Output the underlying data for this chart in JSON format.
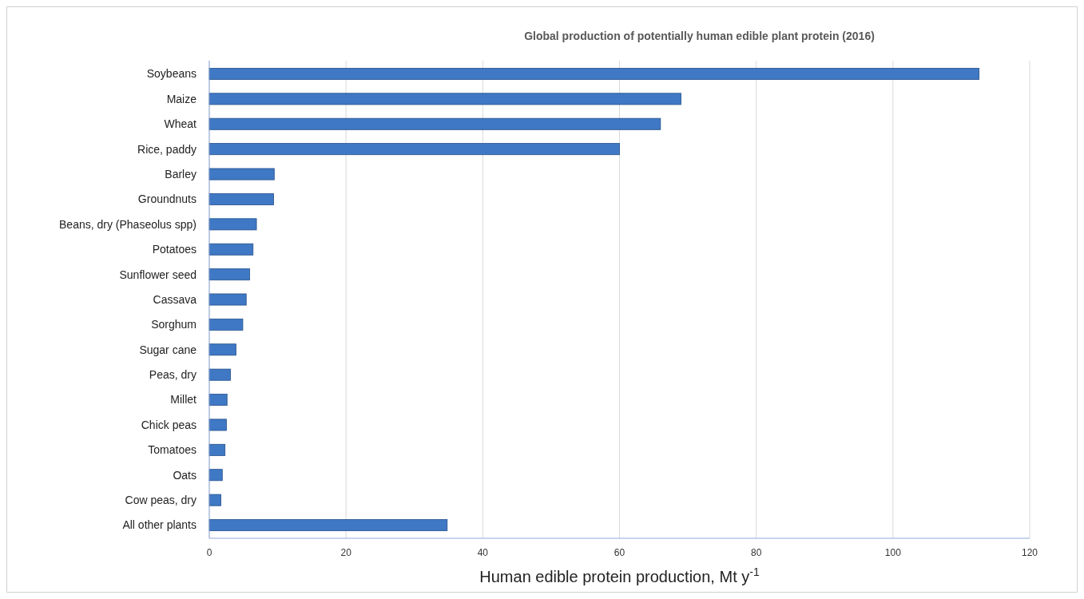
{
  "chart_data": {
    "type": "bar",
    "orientation": "horizontal",
    "title": "Global production  of potentially human edible plant protein (2016)",
    "xlabel": "Human edible protein production, Mt y$^{-1}$",
    "categories": [
      "Soybeans",
      "Maize",
      "Wheat",
      "Rice, paddy",
      "Barley",
      "Groundnuts",
      "Beans, dry (Phaseolus spp)",
      "Potatoes",
      "Sunflower seed",
      "Cassava",
      "Sorghum",
      "Sugar cane",
      "Peas, dry",
      "Millet",
      "Chick peas",
      "Tomatoes",
      "Oats",
      "Cow peas, dry",
      "All other plants"
    ],
    "values": [
      112.6,
      69,
      66,
      60,
      9.5,
      9.4,
      6.9,
      6.4,
      5.9,
      5.4,
      4.9,
      3.9,
      3.1,
      2.6,
      2.5,
      2.3,
      1.9,
      1.7,
      34.8
    ],
    "color": "#3f78c4",
    "xlim": [
      0,
      120
    ],
    "xticks": [
      0,
      20,
      40,
      60,
      80,
      100,
      120
    ],
    "grid": "x"
  }
}
